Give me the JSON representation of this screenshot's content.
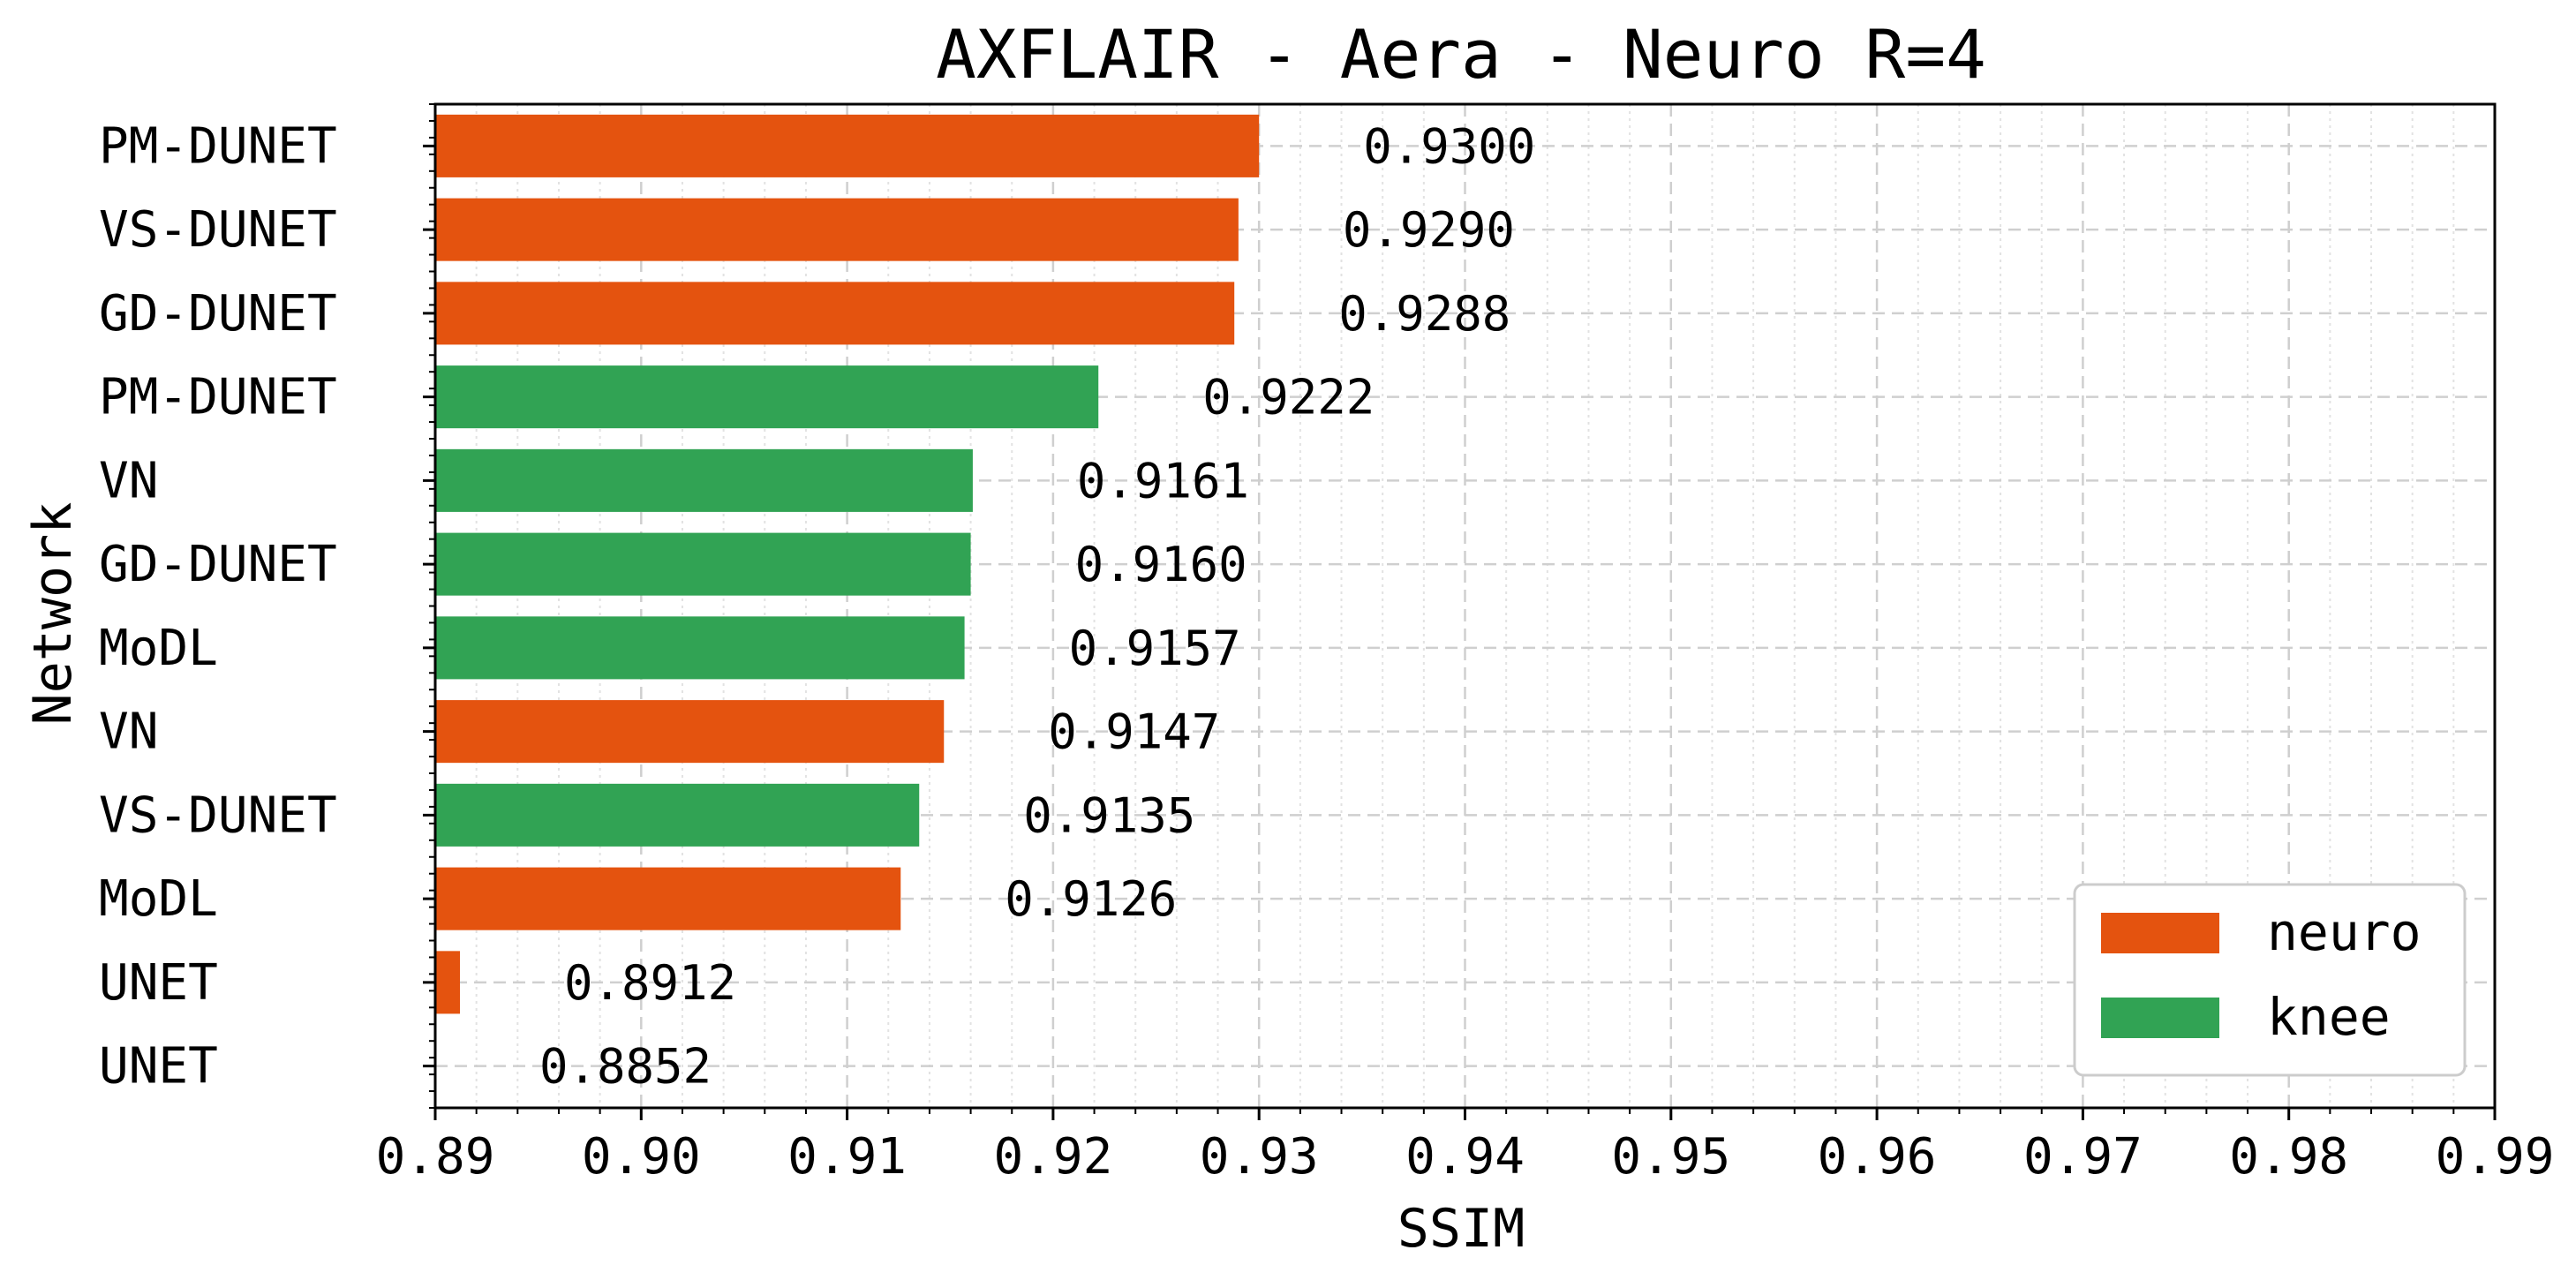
{
  "chart_data": {
    "type": "bar",
    "orientation": "horizontal",
    "title": "AXFLAIR - Aera - Neuro R=4",
    "xlabel": "SSIM",
    "ylabel": "Network",
    "xlim": [
      0.89,
      0.99
    ],
    "xticks": [
      "0.89",
      "0.90",
      "0.91",
      "0.92",
      "0.93",
      "0.94",
      "0.95",
      "0.96",
      "0.97",
      "0.98",
      "0.99"
    ],
    "grid": true,
    "legend_position": "bottom-right",
    "legend": [
      {
        "label": "neuro",
        "color": "#e4530f"
      },
      {
        "label": "knee",
        "color": "#31a354"
      }
    ],
    "bars": [
      {
        "label": "PM-DUNET",
        "value": 0.93,
        "value_label": "0.9300",
        "group": "neuro"
      },
      {
        "label": "VS-DUNET",
        "value": 0.929,
        "value_label": "0.9290",
        "group": "neuro"
      },
      {
        "label": "GD-DUNET",
        "value": 0.9288,
        "value_label": "0.9288",
        "group": "neuro"
      },
      {
        "label": "PM-DUNET",
        "value": 0.9222,
        "value_label": "0.9222",
        "group": "knee"
      },
      {
        "label": "VN",
        "value": 0.9161,
        "value_label": "0.9161",
        "group": "knee"
      },
      {
        "label": "GD-DUNET",
        "value": 0.916,
        "value_label": "0.9160",
        "group": "knee"
      },
      {
        "label": "MoDL",
        "value": 0.9157,
        "value_label": "0.9157",
        "group": "knee"
      },
      {
        "label": "VN",
        "value": 0.9147,
        "value_label": "0.9147",
        "group": "neuro"
      },
      {
        "label": "VS-DUNET",
        "value": 0.9135,
        "value_label": "0.9135",
        "group": "knee"
      },
      {
        "label": "MoDL",
        "value": 0.9126,
        "value_label": "0.9126",
        "group": "neuro"
      },
      {
        "label": "UNET",
        "value": 0.8912,
        "value_label": "0.8912",
        "group": "neuro"
      },
      {
        "label": "UNET",
        "value": 0.8852,
        "value_label": "0.8852",
        "group": "knee"
      }
    ]
  }
}
